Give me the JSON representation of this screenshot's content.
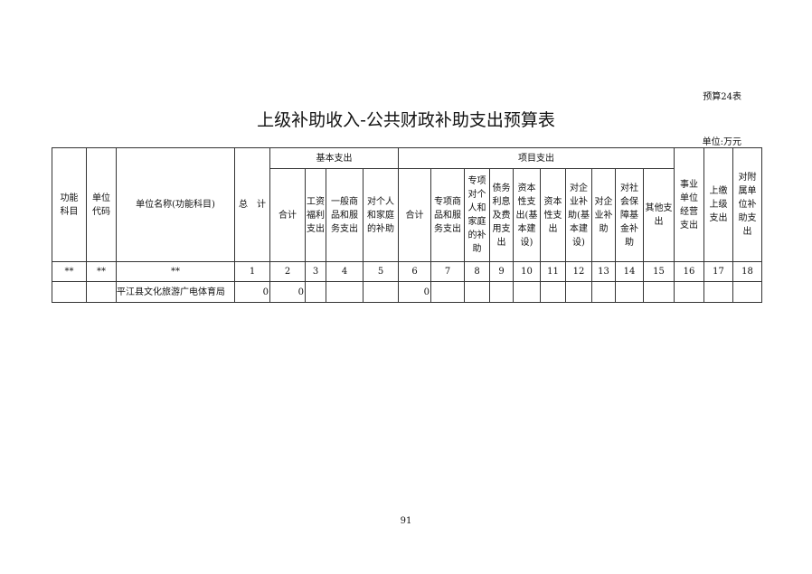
{
  "table_tag": "预算24表",
  "title": "上级补助收入-公共财政补助支出预算表",
  "unit": "单位:万元",
  "headers": {
    "func": "功能\n科目",
    "code": "单位\n代码",
    "name": "单位名称(功能科目)",
    "total": "总　计",
    "basic": "基本支出",
    "project": "项目支出",
    "shiye": "事业\n单位\n经营\n支出",
    "shangjiao": "上缴\n上级\n支出",
    "fushu": "对附\n属单\n位补\n助支\n出",
    "basic_sub": [
      "合计",
      "工资\n福利\n支出",
      "一般商\n品和服\n务支出",
      "对个人\n和家庭\n的补助"
    ],
    "project_sub": [
      "合计",
      "专项商\n品和服\n务支出",
      "专项\n对个\n人和\n家庭\n的补\n助",
      "债务\n利息\n及费\n用支\n出",
      "资本\n性支\n出(基\n本建\n设)",
      "资本\n性支\n出",
      "对企\n业补\n助(基\n本建\n设)",
      "对企\n业补\n助",
      "对社\n会保\n障基\n金补\n助",
      "其他支\n出"
    ]
  },
  "index_row": [
    "**",
    "**",
    "**",
    "1",
    "2",
    "3",
    "4",
    "5",
    "6",
    "7",
    "8",
    "9",
    "10",
    "11",
    "12",
    "13",
    "14",
    "15",
    "16",
    "17",
    "18"
  ],
  "rows": [
    [
      "",
      "",
      "平江县文化旅游广电体育局",
      "0",
      "0",
      "",
      "",
      "",
      "0",
      "",
      "",
      "",
      "",
      "",
      "",
      "",
      "",
      "",
      "",
      "",
      ""
    ]
  ],
  "page_number": "91"
}
